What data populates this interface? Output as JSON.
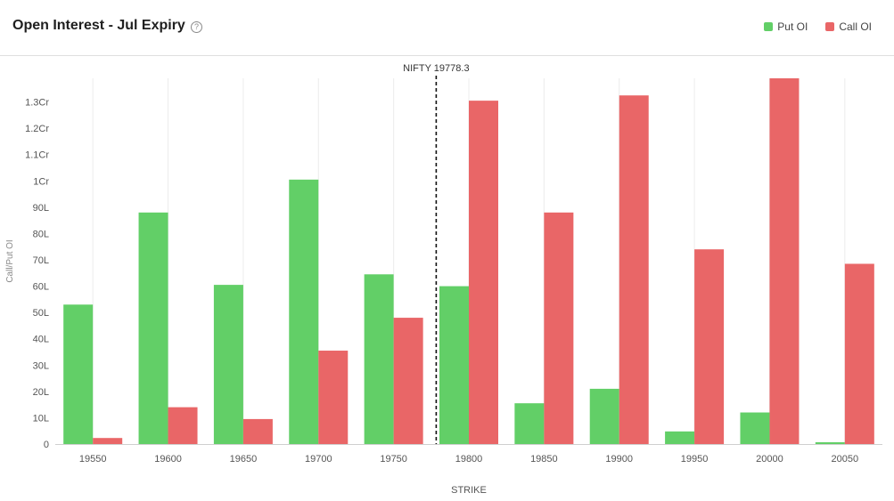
{
  "header": {
    "title": "Open Interest - Jul Expiry",
    "help_icon": "question-circle-icon"
  },
  "legend": [
    {
      "label": "Put OI",
      "color": "#62cf67"
    },
    {
      "label": "Call OI",
      "color": "#e96667"
    }
  ],
  "chart_data": {
    "type": "bar",
    "categories": [
      "19550",
      "19600",
      "19650",
      "19700",
      "19750",
      "19800",
      "19850",
      "19900",
      "19950",
      "20000",
      "20050"
    ],
    "series": [
      {
        "name": "Put OI",
        "color": "#62cf67",
        "values": [
          5300000,
          8800000,
          6050000,
          10050000,
          6450000,
          6000000,
          1550000,
          2100000,
          480000,
          1200000,
          70000
        ]
      },
      {
        "name": "Call OI",
        "color": "#e96667",
        "values": [
          230000,
          1400000,
          950000,
          3550000,
          4800000,
          13050000,
          8800000,
          13250000,
          7400000,
          13900000,
          6850000
        ]
      }
    ],
    "y_ticks": [
      {
        "value": 0,
        "label": "0"
      },
      {
        "value": 1000000,
        "label": "10L"
      },
      {
        "value": 2000000,
        "label": "20L"
      },
      {
        "value": 3000000,
        "label": "30L"
      },
      {
        "value": 4000000,
        "label": "40L"
      },
      {
        "value": 5000000,
        "label": "50L"
      },
      {
        "value": 6000000,
        "label": "60L"
      },
      {
        "value": 7000000,
        "label": "70L"
      },
      {
        "value": 8000000,
        "label": "80L"
      },
      {
        "value": 9000000,
        "label": "90L"
      },
      {
        "value": 10000000,
        "label": "1Cr"
      },
      {
        "value": 11000000,
        "label": "1.1Cr"
      },
      {
        "value": 12000000,
        "label": "1.2Cr"
      },
      {
        "value": 13000000,
        "label": "1.3Cr"
      }
    ],
    "ylim": [
      0,
      13900000
    ],
    "xlabel": "STRIKE",
    "ylabel": "Call/Put OI",
    "spot": {
      "label": "NIFTY 19778.3",
      "value": 19778.3
    },
    "grid": true,
    "legend_position": "top-right"
  }
}
